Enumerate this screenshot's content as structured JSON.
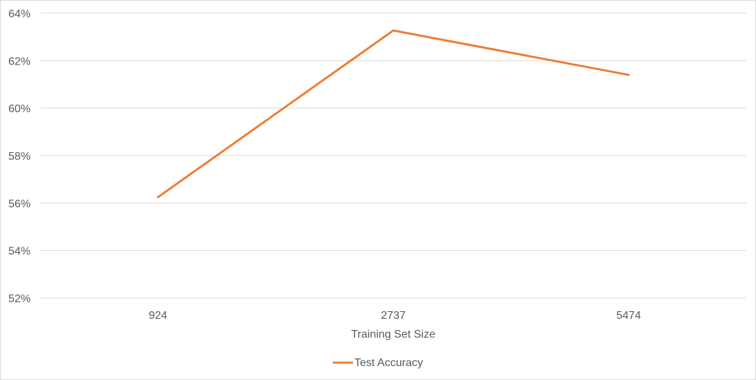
{
  "chart_data": {
    "type": "line",
    "title": "",
    "xlabel": "Training Set Size",
    "ylabel": "",
    "categories": [
      "924",
      "2737",
      "5474"
    ],
    "ylim": [
      0.52,
      0.64
    ],
    "yticks": [
      0.52,
      0.54,
      0.56,
      0.58,
      0.6,
      0.62,
      0.64
    ],
    "ytick_labels": [
      "52%",
      "54%",
      "56%",
      "58%",
      "60%",
      "62%",
      "64%"
    ],
    "grid": true,
    "legend_position": "bottom",
    "series": [
      {
        "name": "Test Accuracy",
        "color": "#ed7d31",
        "values": [
          0.5625,
          0.6327,
          0.614
        ]
      }
    ]
  }
}
